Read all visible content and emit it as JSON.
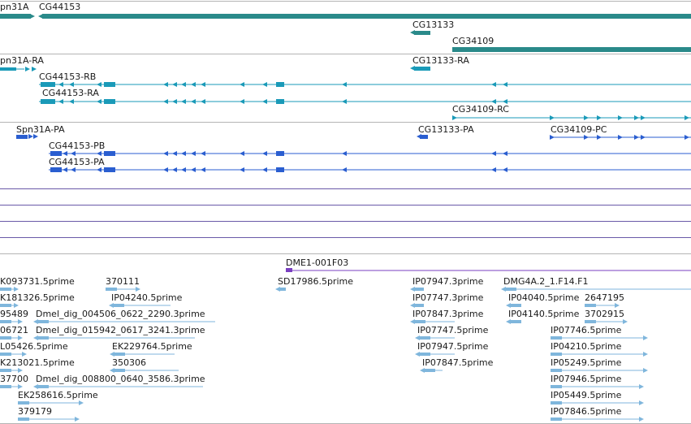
{
  "colors": {
    "gene": "#2a8a8a",
    "transcript_ra": "#1a9ab8",
    "transcript_pa": "#2a5ed0",
    "divider": "#b4b4b4",
    "blank_line": "#6a5aa8",
    "clone": "#7a3fc0",
    "est": "#7fb6dc"
  },
  "genes": [
    {
      "id": "spn31a-gene",
      "label": "pn31A"
    },
    {
      "id": "cg44153-gene",
      "label": "CG44153"
    },
    {
      "id": "cg13133-gene",
      "label": "CG13133"
    },
    {
      "id": "cg34109-gene",
      "label": "CG34109"
    }
  ],
  "rna_transcripts": [
    {
      "id": "spn31a-ra",
      "label": "pn31A-RA"
    },
    {
      "id": "cg44153-rb",
      "label": "CG44153-RB"
    },
    {
      "id": "cg44153-ra",
      "label": "CG44153-RA"
    },
    {
      "id": "cg13133-ra",
      "label": "CG13133-RA"
    },
    {
      "id": "cg34109-rc",
      "label": "CG34109-RC"
    }
  ],
  "protein_transcripts": [
    {
      "id": "spn31a-pa",
      "label": "Spn31A-PA"
    },
    {
      "id": "cg44153-pb",
      "label": "CG44153-PB"
    },
    {
      "id": "cg44153-pa",
      "label": "CG44153-PA"
    },
    {
      "id": "cg13133-pa",
      "label": "CG13133-PA"
    },
    {
      "id": "cg34109-pc",
      "label": "CG34109-PC"
    }
  ],
  "clones": [
    {
      "id": "dme1-001f03",
      "label": "DME1-001F03"
    }
  ],
  "est_features": [
    {
      "id": "est-1",
      "label": "K093731.5prime"
    },
    {
      "id": "est-2",
      "label": "370111"
    },
    {
      "id": "est-3",
      "label": "SD17986.5prime"
    },
    {
      "id": "est-4",
      "label": "IP07947.3prime"
    },
    {
      "id": "est-5",
      "label": "DMG4A.2_1.F14.F1"
    },
    {
      "id": "est-6",
      "label": "K181326.5prime"
    },
    {
      "id": "est-7",
      "label": "IP04240.5prime"
    },
    {
      "id": "est-8",
      "label": "IP07747.3prime"
    },
    {
      "id": "est-9",
      "label": "IP04040.5prime"
    },
    {
      "id": "est-10",
      "label": "2647195"
    },
    {
      "id": "est-11",
      "label": "95489"
    },
    {
      "id": "est-12",
      "label": "Dmel_dig_004506_0622_2290.3prime"
    },
    {
      "id": "est-13",
      "label": "IP07847.3prime"
    },
    {
      "id": "est-14",
      "label": "IP04140.5prime"
    },
    {
      "id": "est-15",
      "label": "3702915"
    },
    {
      "id": "est-16",
      "label": "06721"
    },
    {
      "id": "est-17",
      "label": "Dmel_dig_015942_0617_3241.3prime"
    },
    {
      "id": "est-18",
      "label": "IP07747.5prime"
    },
    {
      "id": "est-19",
      "label": "IP07746.5prime"
    },
    {
      "id": "est-20",
      "label": "L05426.5prime"
    },
    {
      "id": "est-21",
      "label": "EK229764.5prime"
    },
    {
      "id": "est-22",
      "label": "IP07947.5prime"
    },
    {
      "id": "est-23",
      "label": "IP04210.5prime"
    },
    {
      "id": "est-24",
      "label": "K213021.5prime"
    },
    {
      "id": "est-25",
      "label": "350306"
    },
    {
      "id": "est-26",
      "label": "IP07847.5prime"
    },
    {
      "id": "est-27",
      "label": "IP05249.5prime"
    },
    {
      "id": "est-28",
      "label": "37700"
    },
    {
      "id": "est-29",
      "label": "Dmel_dig_008800_0640_3586.3prime"
    },
    {
      "id": "est-30",
      "label": "IP07946.5prime"
    },
    {
      "id": "est-31",
      "label": "EK258616.5prime"
    },
    {
      "id": "est-32",
      "label": "IP05449.5prime"
    },
    {
      "id": "est-33",
      "label": "379179"
    },
    {
      "id": "est-34",
      "label": "IP07846.5prime"
    }
  ]
}
